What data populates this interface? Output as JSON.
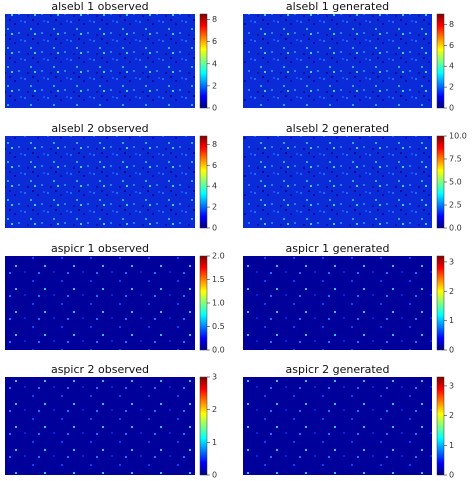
{
  "chart_data": [
    {
      "type": "heatmap",
      "title": "alsebl 1 observed",
      "cmap": "jet",
      "clim": [
        0,
        8.5
      ],
      "cticks": [
        0,
        2,
        4,
        6,
        8
      ]
    },
    {
      "type": "heatmap",
      "title": "alsebl 1 generated",
      "cmap": "jet",
      "clim": [
        0,
        9
      ],
      "cticks": [
        0,
        2,
        4,
        6,
        8
      ]
    },
    {
      "type": "heatmap",
      "title": "alsebl 2 observed",
      "cmap": "jet",
      "clim": [
        0,
        8.8
      ],
      "cticks": [
        0,
        2,
        4,
        6,
        8
      ]
    },
    {
      "type": "heatmap",
      "title": "alsebl 2 generated",
      "cmap": "jet",
      "clim": [
        0,
        10
      ],
      "cticks": [
        {
          "value": 0,
          "label": "0.0"
        },
        {
          "value": 2.5,
          "label": "2.5"
        },
        {
          "value": 5,
          "label": "5.0"
        },
        {
          "value": 7.5,
          "label": "7.5"
        },
        {
          "value": 10,
          "label": "10.0"
        }
      ]
    },
    {
      "type": "heatmap",
      "title": "aspicr 1 observed",
      "cmap": "jet",
      "clim": [
        0,
        2
      ],
      "cticks": [
        {
          "value": 0,
          "label": "0.0"
        },
        {
          "value": 0.5,
          "label": "0.5"
        },
        {
          "value": 1,
          "label": "1.0"
        },
        {
          "value": 1.5,
          "label": "1.5"
        },
        {
          "value": 2,
          "label": "2.0"
        }
      ]
    },
    {
      "type": "heatmap",
      "title": "aspicr 1 generated",
      "cmap": "jet",
      "clim": [
        0,
        3.2
      ],
      "cticks": [
        0,
        1,
        2,
        3
      ]
    },
    {
      "type": "heatmap",
      "title": "aspicr 2 observed",
      "cmap": "jet",
      "clim": [
        0,
        3
      ],
      "cticks": [
        0,
        1,
        2,
        3
      ]
    },
    {
      "type": "heatmap",
      "title": "aspicr 2 generated",
      "cmap": "jet",
      "clim": [
        0,
        3.3
      ],
      "cticks": [
        0,
        1,
        2,
        3
      ]
    }
  ]
}
